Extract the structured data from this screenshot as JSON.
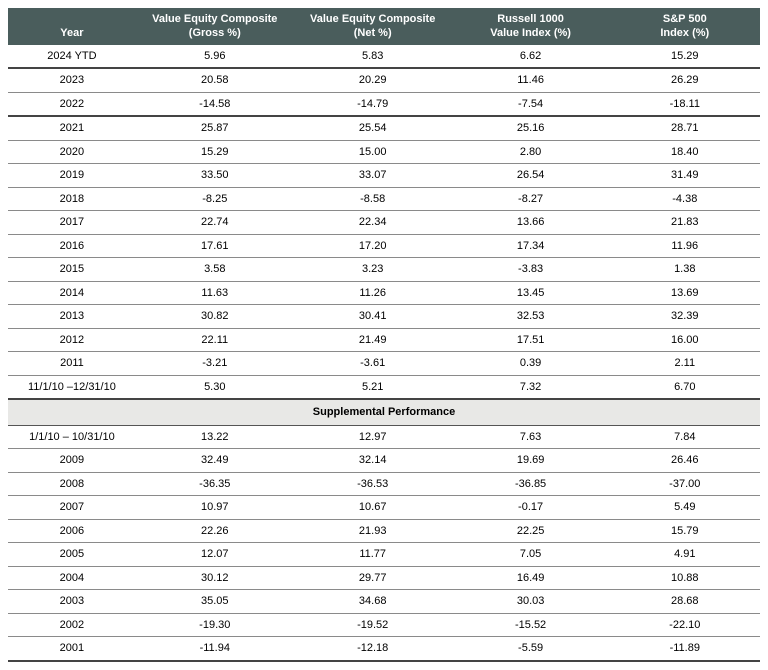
{
  "table": {
    "columns": [
      {
        "line1": "",
        "line2": "Year"
      },
      {
        "line1": "Value Equity Composite",
        "line2": "(Gross %)"
      },
      {
        "line1": "Value Equity Composite",
        "line2": "(Net %)"
      },
      {
        "line1": "Russell 1000",
        "line2": "Value Index (%)"
      },
      {
        "line1": "S&P 500",
        "line2": "Index (%)"
      }
    ],
    "rows_top": [
      {
        "year": "2024 YTD",
        "gross": "5.96",
        "net": "5.83",
        "russ": "6.62",
        "sp": "15.29",
        "heavy": true
      },
      {
        "year": "2023",
        "gross": "20.58",
        "net": "20.29",
        "russ": "11.46",
        "sp": "26.29"
      },
      {
        "year": "2022",
        "gross": "-14.58",
        "net": "-14.79",
        "russ": "-7.54",
        "sp": "-18.11",
        "heavy": true
      },
      {
        "year": "2021",
        "gross": "25.87",
        "net": "25.54",
        "russ": "25.16",
        "sp": "28.71"
      },
      {
        "year": "2020",
        "gross": "15.29",
        "net": "15.00",
        "russ": "2.80",
        "sp": "18.40"
      },
      {
        "year": "2019",
        "gross": "33.50",
        "net": "33.07",
        "russ": "26.54",
        "sp": "31.49"
      },
      {
        "year": "2018",
        "gross": "-8.25",
        "net": "-8.58",
        "russ": "-8.27",
        "sp": "-4.38"
      },
      {
        "year": "2017",
        "gross": "22.74",
        "net": "22.34",
        "russ": "13.66",
        "sp": "21.83"
      },
      {
        "year": "2016",
        "gross": "17.61",
        "net": "17.20",
        "russ": "17.34",
        "sp": "11.96"
      },
      {
        "year": "2015",
        "gross": "3.58",
        "net": "3.23",
        "russ": "-3.83",
        "sp": "1.38"
      },
      {
        "year": "2014",
        "gross": "11.63",
        "net": "11.26",
        "russ": "13.45",
        "sp": "13.69"
      },
      {
        "year": "2013",
        "gross": "30.82",
        "net": "30.41",
        "russ": "32.53",
        "sp": "32.39"
      },
      {
        "year": "2012",
        "gross": "22.11",
        "net": "21.49",
        "russ": "17.51",
        "sp": "16.00"
      },
      {
        "year": "2011",
        "gross": "-3.21",
        "net": "-3.61",
        "russ": "0.39",
        "sp": "2.11"
      },
      {
        "year": "11/1/10 –12/31/10",
        "gross": "5.30",
        "net": "5.21",
        "russ": "7.32",
        "sp": "6.70",
        "heavy": true
      }
    ],
    "section_label": "Supplemental Performance",
    "rows_bottom": [
      {
        "year": "1/1/10 – 10/31/10",
        "gross": "13.22",
        "net": "12.97",
        "russ": "7.63",
        "sp": "7.84"
      },
      {
        "year": "2009",
        "gross": "32.49",
        "net": "32.14",
        "russ": "19.69",
        "sp": "26.46"
      },
      {
        "year": "2008",
        "gross": "-36.35",
        "net": "-36.53",
        "russ": "-36.85",
        "sp": "-37.00"
      },
      {
        "year": "2007",
        "gross": "10.97",
        "net": "10.67",
        "russ": "-0.17",
        "sp": "5.49"
      },
      {
        "year": "2006",
        "gross": "22.26",
        "net": "21.93",
        "russ": "22.25",
        "sp": "15.79"
      },
      {
        "year": "2005",
        "gross": "12.07",
        "net": "11.77",
        "russ": "7.05",
        "sp": "4.91"
      },
      {
        "year": "2004",
        "gross": "30.12",
        "net": "29.77",
        "russ": "16.49",
        "sp": "10.88"
      },
      {
        "year": "2003",
        "gross": "35.05",
        "net": "34.68",
        "russ": "30.03",
        "sp": "28.68"
      },
      {
        "year": "2002",
        "gross": "-19.30",
        "net": "-19.52",
        "russ": "-15.52",
        "sp": "-22.10"
      },
      {
        "year": "2001",
        "gross": "-11.94",
        "net": "-12.18",
        "russ": "-5.59",
        "sp": "-11.89",
        "heavy": true
      }
    ],
    "header_bg": "#4a5d5c",
    "header_fg": "#ffffff",
    "row_border": "#8a8a8a",
    "section_bg": "#e8e8e6"
  }
}
